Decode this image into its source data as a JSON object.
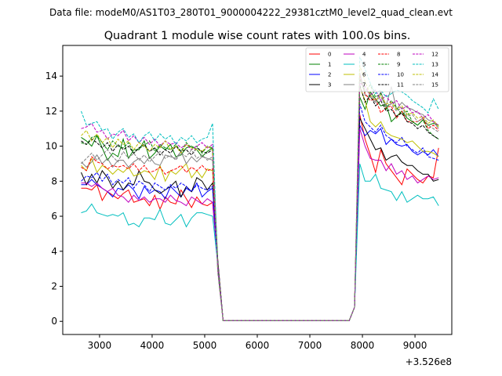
{
  "suptitle": "Data file: modeM0/AS1T03_280T01_9000004222_29381cztM0_level2_quad_clean.evt",
  "chart_data": {
    "type": "line",
    "title": "Quadrant 1 module wise count rates with 100.0s bins.",
    "xlabel": "",
    "ylabel": "",
    "x_offset_label": "+3.526e8",
    "x_offset": 352600000,
    "x_relative": {
      "start": 2650,
      "step": 100,
      "count": 69
    },
    "xlim": [
      2300,
      9700
    ],
    "ylim": [
      -0.75,
      15.75
    ],
    "x_ticks": [
      3000,
      4000,
      5000,
      6000,
      7000,
      8000,
      9000
    ],
    "x_tick_labels": [
      "3000",
      "4000",
      "5000",
      "6000",
      "7000",
      "8000",
      "9000"
    ],
    "y_ticks": [
      0,
      2,
      4,
      6,
      8,
      10,
      12,
      14
    ],
    "y_tick_labels": [
      "0",
      "2",
      "4",
      "6",
      "8",
      "10",
      "12",
      "14"
    ],
    "grid": false,
    "legend_position": "top-right",
    "legend_columns": 4,
    "series": [
      {
        "name": "0",
        "color": "#ff0000",
        "dash": "solid",
        "seg1": [
          7.6,
          7.6,
          7.5,
          7.8,
          6.9,
          7.4,
          7.2,
          7.0,
          7.3,
          7.5,
          6.8,
          6.9,
          7.0,
          6.6,
          7.2,
          6.4,
          7.1,
          6.8,
          6.7,
          7.5,
          7.0,
          6.5,
          7.1,
          6.7,
          6.6,
          6.8
        ],
        "seg2": [
          11.8,
          10.4,
          9.5,
          8.5,
          9.8,
          9.0,
          8.6,
          8.2,
          7.8,
          8.7,
          8.4,
          8.1,
          7.9,
          8.3,
          8.2,
          9.9
        ]
      },
      {
        "name": "1",
        "color": "#008000",
        "dash": "solid",
        "seg1": [
          10.5,
          10.3,
          10.0,
          10.6,
          9.9,
          9.2,
          9.6,
          9.4,
          10.4,
          9.3,
          9.8,
          9.8,
          10.3,
          9.3,
          9.6,
          10.0,
          9.8,
          10.1,
          9.4,
          9.5,
          9.9,
          10.0,
          9.8,
          9.4,
          9.7,
          9.9
        ],
        "seg2": [
          12.8,
          12.1,
          13.1,
          12.7,
          12.3,
          12.4,
          11.4,
          11.7,
          12.0,
          11.6,
          11.4,
          11.2,
          11.5,
          11.2,
          11.3,
          11.2
        ]
      },
      {
        "name": "2",
        "color": "#0000ff",
        "dash": "solid",
        "seg1": [
          7.8,
          7.8,
          8.1,
          7.8,
          7.6,
          7.4,
          7.1,
          7.6,
          7.5,
          7.8,
          7.5,
          7.0,
          7.7,
          7.3,
          7.5,
          7.4,
          7.0,
          7.7,
          7.4,
          7.1,
          7.6,
          7.4,
          7.9,
          7.1,
          7.4,
          7.6
        ],
        "seg2": [
          11.2,
          10.6,
          10.9,
          10.7,
          11.0,
          10.1,
          10.4,
          10.1,
          10.0,
          10.1,
          9.7,
          9.5,
          9.7,
          9.5,
          9.8,
          9.4
        ]
      },
      {
        "name": "3",
        "color": "#000000",
        "dash": "solid",
        "seg1": [
          8.5,
          7.8,
          8.4,
          7.9,
          8.6,
          8.2,
          7.6,
          8.0,
          7.5,
          7.9,
          7.8,
          8.6,
          8.0,
          7.9,
          7.5,
          7.3,
          7.5,
          7.7,
          8.0,
          7.1,
          7.7,
          7.4,
          8.2,
          8.0,
          7.5,
          7.9
        ],
        "seg2": [
          11.6,
          11.0,
          10.4,
          9.8,
          9.9,
          9.2,
          9.4,
          9.5,
          9.1,
          8.9,
          8.9,
          8.6,
          8.4,
          8.4,
          8.0,
          8.1
        ]
      },
      {
        "name": "4",
        "color": "#bf00bf",
        "dash": "solid",
        "seg1": [
          7.9,
          7.9,
          7.7,
          7.9,
          7.6,
          7.4,
          7.6,
          7.2,
          7.1,
          6.8,
          7.2,
          6.9,
          7.1,
          6.8,
          7.0,
          7.0,
          6.8,
          7.2,
          6.9,
          6.8,
          6.6,
          7.1,
          6.9,
          6.7,
          7.0,
          6.8
        ],
        "seg2": [
          11.0,
          10.0,
          9.3,
          9.2,
          9.2,
          8.6,
          9.0,
          8.4,
          8.6,
          8.1,
          8.3,
          7.9,
          8.1,
          8.3,
          8.1,
          8.2
        ]
      },
      {
        "name": "5",
        "color": "#00bfbf",
        "dash": "solid",
        "seg1": [
          6.2,
          6.3,
          6.7,
          6.2,
          6.1,
          6.0,
          6.1,
          6.0,
          6.2,
          5.5,
          5.6,
          5.4,
          5.9,
          5.9,
          5.8,
          6.4,
          5.6,
          5.5,
          5.8,
          6.1,
          5.4,
          5.9,
          6.2,
          6.2,
          6.1,
          6.0
        ],
        "seg2": [
          9.0,
          8.0,
          8.0,
          8.4,
          7.6,
          7.5,
          7.4,
          6.9,
          7.4,
          6.8,
          7.0,
          7.2,
          7.0,
          7.0,
          7.1,
          6.6
        ]
      },
      {
        "name": "6",
        "color": "#bfbf00",
        "dash": "solid",
        "seg1": [
          8.9,
          8.6,
          9.3,
          8.5,
          8.9,
          8.7,
          8.4,
          8.7,
          8.5,
          8.8,
          8.3,
          8.4,
          8.6,
          8.5,
          8.1,
          8.9,
          8.0,
          8.6,
          8.4,
          8.7,
          9.0,
          8.2,
          8.6,
          8.2,
          8.7,
          8.6
        ],
        "seg2": [
          13.4,
          12.6,
          11.4,
          11.1,
          11.4,
          10.8,
          10.6,
          10.5,
          10.4,
          10.2,
          10.3,
          10.0,
          9.7,
          9.7,
          9.6,
          9.4
        ]
      },
      {
        "name": "7",
        "color": "#808080",
        "dash": "solid",
        "seg1": [
          9.1,
          8.8,
          9.1,
          9.5,
          9.0,
          9.3,
          8.8,
          9.2,
          9.2,
          8.8,
          9.1,
          9.3,
          9.0,
          9.4,
          9.0,
          8.9,
          9.5,
          9.4,
          9.3,
          9.7,
          9.0,
          9.4,
          9.1,
          9.4,
          9.3,
          9.2
        ],
        "seg2": [
          14.2,
          12.9,
          12.8,
          12.5,
          13.1,
          12.3,
          13.4,
          12.1,
          12.5,
          12.2,
          12.1,
          11.9,
          11.8,
          11.5,
          11.4,
          11.0
        ]
      },
      {
        "name": "8",
        "color": "#ff0000",
        "dash": "dashed",
        "seg1": [
          8.8,
          8.6,
          9.4,
          9.1,
          9.0,
          8.7,
          8.9,
          8.8,
          8.9,
          8.7,
          9.0,
          8.6,
          8.9,
          8.5,
          8.6,
          8.8,
          8.4,
          8.6,
          8.7,
          8.9,
          8.5,
          8.8,
          8.6,
          8.9,
          8.6,
          8.7
        ],
        "seg2": [
          14.0,
          13.0,
          12.6,
          12.7,
          11.9,
          12.2,
          12.3,
          11.6,
          12.0,
          11.4,
          11.4,
          11.4,
          11.6,
          11.0,
          11.2,
          10.9
        ]
      },
      {
        "name": "9",
        "color": "#008000",
        "dash": "dashed",
        "seg1": [
          10.2,
          10.1,
          10.5,
          10.6,
          10.2,
          9.8,
          10.3,
          10.0,
          9.9,
          10.2,
          9.6,
          9.9,
          10.0,
          10.3,
          9.7,
          10.1,
          9.9,
          9.8,
          10.1,
          9.7,
          10.2,
          9.9,
          10.0,
          9.6,
          10.0,
          9.9
        ],
        "seg2": [
          13.8,
          13.1,
          13.5,
          12.8,
          13.0,
          12.1,
          12.6,
          12.2,
          11.8,
          12.0,
          11.4,
          11.2,
          11.5,
          10.9,
          10.6,
          10.4
        ]
      },
      {
        "name": "10",
        "color": "#0000ff",
        "dash": "dashed",
        "seg1": [
          8.0,
          8.3,
          8.2,
          8.5,
          8.0,
          8.4,
          7.8,
          8.1,
          7.9,
          8.2,
          7.6,
          8.0,
          7.8,
          7.4,
          7.9,
          7.7,
          7.5,
          7.8,
          7.6,
          7.9,
          7.7,
          7.4,
          7.8,
          7.6,
          7.5,
          7.7
        ],
        "seg2": [
          12.4,
          11.4,
          11.1,
          10.8,
          11.2,
          10.6,
          10.4,
          10.2,
          10.5,
          10.0,
          9.8,
          9.6,
          9.9,
          9.4,
          9.3,
          9.2
        ]
      },
      {
        "name": "11",
        "color": "#000000",
        "dash": "dashed",
        "seg1": [
          10.3,
          10.1,
          10.4,
          10.2,
          9.9,
          10.2,
          9.7,
          10.1,
          9.8,
          10.0,
          9.6,
          9.9,
          10.1,
          9.7,
          9.9,
          9.5,
          9.8,
          9.6,
          10.0,
          9.7,
          9.8,
          9.5,
          9.9,
          9.7,
          9.6,
          9.8
        ],
        "seg2": [
          13.5,
          12.5,
          12.9,
          12.3,
          12.6,
          12.0,
          12.1,
          11.7,
          11.9,
          11.4,
          11.3,
          11.0,
          11.2,
          10.8,
          10.6,
          10.4
        ]
      },
      {
        "name": "12",
        "color": "#bf00bf",
        "dash": "dashed",
        "seg1": [
          11.0,
          11.1,
          11.3,
          10.8,
          10.9,
          10.4,
          10.7,
          10.6,
          10.9,
          10.3,
          10.6,
          10.2,
          10.5,
          10.1,
          10.4,
          10.0,
          10.3,
          10.1,
          10.2,
          9.9,
          10.1,
          9.8,
          10.0,
          10.2,
          9.9,
          10.1
        ],
        "seg2": [
          13.6,
          13.4,
          12.9,
          13.2,
          12.6,
          12.9,
          12.4,
          12.6,
          12.1,
          12.3,
          11.9,
          12.0,
          11.6,
          11.8,
          11.4,
          11.2
        ]
      },
      {
        "name": "13",
        "color": "#00bfbf",
        "dash": "dashed",
        "seg1": [
          12.0,
          11.2,
          11.3,
          11.4,
          10.9,
          11.0,
          10.4,
          10.8,
          11.0,
          10.5,
          10.7,
          10.2,
          10.6,
          10.8,
          10.3,
          10.7,
          10.4,
          10.6,
          10.1,
          10.5,
          10.3,
          10.6,
          10.2,
          10.4,
          10.5,
          11.3
        ],
        "seg2": [
          15.1,
          14.4,
          13.6,
          13.0,
          13.2,
          12.8,
          13.0,
          13.2,
          13.1,
          12.9,
          12.6,
          12.4,
          12.2,
          11.9,
          12.7,
          12.1
        ]
      },
      {
        "name": "14",
        "color": "#bfbf00",
        "dash": "dashed",
        "seg1": [
          10.6,
          10.9,
          10.3,
          10.7,
          10.2,
          10.5,
          9.9,
          10.4,
          10.1,
          10.3,
          9.8,
          10.2,
          10.0,
          9.7,
          10.1,
          9.9,
          10.3,
          9.8,
          10.0,
          9.6,
          10.1,
          9.9,
          9.8,
          9.7,
          10.0,
          9.8
        ],
        "seg2": [
          14.6,
          13.7,
          12.9,
          12.6,
          12.9,
          12.4,
          12.5,
          12.1,
          12.3,
          11.8,
          11.9,
          11.6,
          11.7,
          11.3,
          11.5,
          11.1
        ]
      },
      {
        "name": "15",
        "color": "#808080",
        "dash": "dashed",
        "seg1": [
          9.0,
          9.3,
          9.6,
          9.2,
          9.5,
          9.8,
          9.4,
          9.1,
          9.7,
          9.3,
          9.6,
          9.2,
          9.5,
          9.1,
          9.4,
          9.7,
          9.3,
          9.5,
          9.2,
          9.6,
          9.4,
          9.8,
          9.3,
          9.5,
          9.2,
          9.4
        ],
        "seg2": [
          13.9,
          13.2,
          13.0,
          12.6,
          12.8,
          12.3,
          12.4,
          12.0,
          12.2,
          11.7,
          11.8,
          11.4,
          11.6,
          11.2,
          11.0,
          10.8
        ]
      }
    ],
    "drop_values": {
      "x": [
        5150,
        5250
      ],
      "note": ""
    },
    "gap_value": 0.05
  }
}
